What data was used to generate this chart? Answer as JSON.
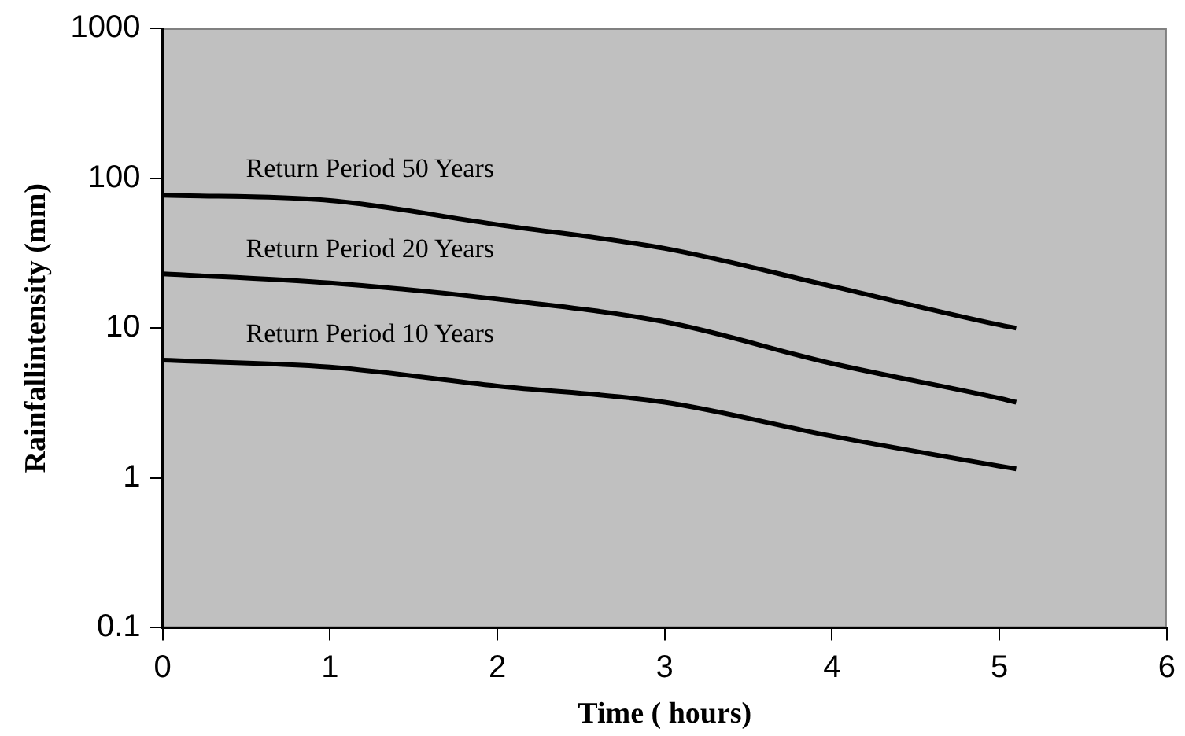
{
  "chart_data": {
    "type": "line",
    "xlabel": "Time ( hours)",
    "ylabel": "Rainfallintensity (mm)",
    "log": "y",
    "grid": false,
    "legend": false,
    "marker": "none",
    "line_style": "solid",
    "xlim": [
      0,
      6
    ],
    "xticks": [
      0,
      1,
      2,
      3,
      4,
      5,
      6
    ],
    "ylim": [
      0.1,
      1000
    ],
    "yticks": [
      0.1,
      1,
      10,
      100,
      1000
    ],
    "x": [
      0,
      1,
      2,
      3,
      4,
      5,
      5.1
    ],
    "series": [
      {
        "color": "#000000",
        "values": [
          77,
          71,
          49,
          34,
          19,
          10.5,
          10
        ]
      },
      {
        "color": "#000000",
        "values": [
          23,
          20,
          15.6,
          11,
          5.8,
          3.4,
          3.2
        ]
      },
      {
        "color": "#000000",
        "values": [
          6.1,
          5.5,
          4.1,
          3.2,
          1.9,
          1.2,
          1.15
        ]
      }
    ],
    "annotations": [
      "Return Period 50 Years",
      "Return Period 20 Years",
      "Return Period 10 Years"
    ]
  }
}
